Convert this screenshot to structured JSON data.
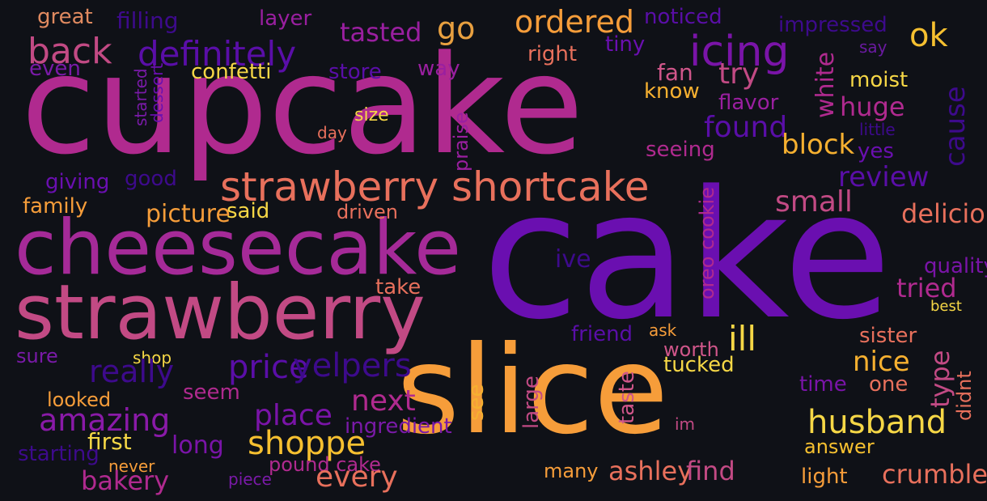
{
  "palette": {
    "background": "#0f1117",
    "purple": "#6a0fb0",
    "deep_purple": "#3d0a8c",
    "magenta": "#b02a8f",
    "pink": "#c24a84",
    "orange": "#f69d3a",
    "yellow": "#f6d746",
    "coral": "#e8705c"
  },
  "words": [
    "cake",
    "cupcake",
    "slice",
    "cheesecake",
    "strawberry",
    "strawberry shortcake",
    "icing",
    "definitely",
    "back",
    "ordered",
    "tasted",
    "go",
    "ok",
    "great",
    "filling",
    "layer",
    "noticed",
    "impressed",
    "say",
    "tiny",
    "right",
    "even",
    "store",
    "way",
    "confetti",
    "fan",
    "try",
    "moist",
    "know",
    "flavor",
    "huge",
    "found",
    "size",
    "day",
    "little",
    "block",
    "yes",
    "seeing",
    "giving",
    "good",
    "review",
    "family",
    "picture",
    "said",
    "driven",
    "small",
    "delicious",
    "ive",
    "quality",
    "take",
    "tried",
    "best",
    "ill",
    "sister",
    "ask",
    "friend",
    "sure",
    "shop",
    "really",
    "price",
    "yelpers",
    "worth",
    "nice",
    "tucked",
    "time",
    "one",
    "looked",
    "seem",
    "next",
    "amazing",
    "place",
    "husband",
    "first",
    "long",
    "shoppe",
    "ingredient",
    "im",
    "answer",
    "starting",
    "pound cake",
    "never",
    "bakery",
    "piece",
    "every",
    "many",
    "ashley",
    "find",
    "light",
    "crumble",
    "white",
    "cause",
    "started",
    "dessert",
    "praise",
    "oreo cookie",
    "type",
    "didnt",
    "see",
    "large",
    "taste"
  ]
}
